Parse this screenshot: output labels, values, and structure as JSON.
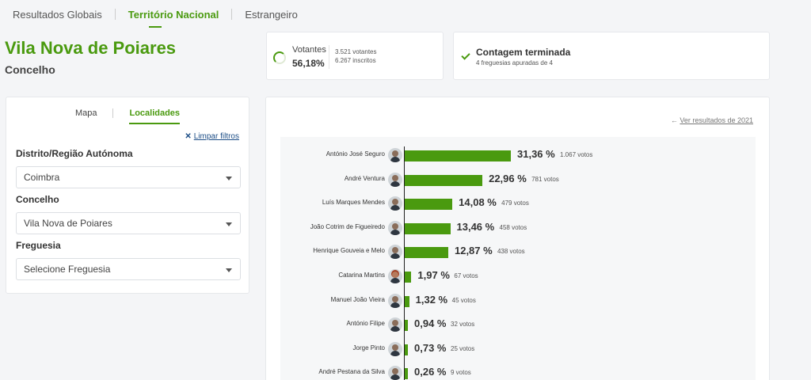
{
  "tabs": [
    {
      "label": "Resultados Globais"
    },
    {
      "label": "Território Nacional"
    },
    {
      "label": "Estrangeiro"
    }
  ],
  "place": {
    "title": "Vila Nova de Poiares",
    "subtitle": "Concelho"
  },
  "votantes": {
    "label": "Votantes",
    "pct": "56,18%",
    "votes": "3.521 votantes",
    "registered": "6.267 inscritos"
  },
  "contagem": {
    "title": "Contagem terminada",
    "subtitle": "4 freguesias apuradas de 4"
  },
  "filters": {
    "tabs": [
      {
        "label": "Mapa"
      },
      {
        "label": "Localidades"
      }
    ],
    "clear_label": "Limpar filtros",
    "fields": [
      {
        "label": "Distrito/Região Autónoma",
        "value": "Coimbra"
      },
      {
        "label": "Concelho",
        "value": "Vila Nova de Poiares"
      },
      {
        "label": "Freguesia",
        "value": "Selecione Freguesia"
      }
    ]
  },
  "results": {
    "prev_link": "Ver resultados de 2021"
  },
  "chart_data": {
    "type": "bar",
    "orientation": "horizontal",
    "unit": "%",
    "categories": [
      "António José Seguro",
      "André Ventura",
      "Luís Marques Mendes",
      "João Cotrim de Figueiredo",
      "Henrique Gouveia e Melo",
      "Catarina Martins",
      "Manuel João Vieira",
      "António Filipe",
      "Jorge Pinto",
      "André Pestana da Silva"
    ],
    "values": [
      31.36,
      22.96,
      14.08,
      13.46,
      12.87,
      1.97,
      1.32,
      0.94,
      0.73,
      0.26
    ],
    "labels": [
      "31,36 %",
      "22,96 %",
      "14,08 %",
      "13,46 %",
      "12,87 %",
      "1,97 %",
      "1,32 %",
      "0,94 %",
      "0,73 %",
      "0,26 %"
    ],
    "votes": [
      "1.067 votos",
      "781 votos",
      "479 votos",
      "458 votos",
      "438 votos",
      "67 votos",
      "45 votos",
      "32 votos",
      "25 votos",
      "9 votos"
    ],
    "female": [
      false,
      false,
      false,
      false,
      false,
      true,
      false,
      false,
      false,
      false
    ],
    "bar_color": "#4a9a0f"
  }
}
